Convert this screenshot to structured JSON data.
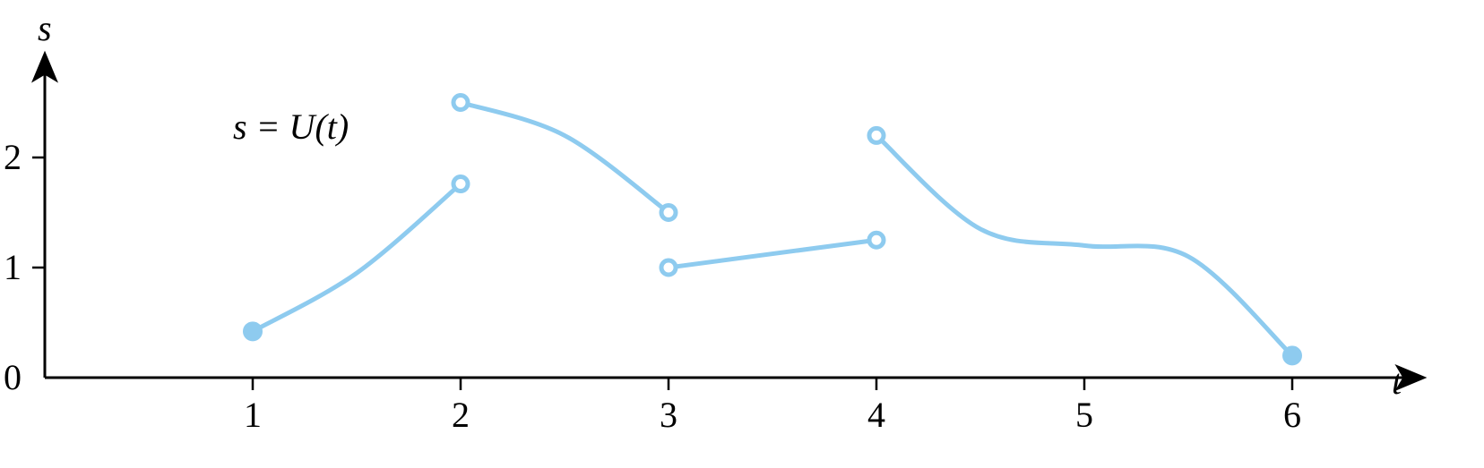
{
  "chart_data": {
    "type": "line",
    "xlabel": "t",
    "ylabel": "s",
    "annotation": "s = U(t)",
    "xlim": [
      0,
      6.45
    ],
    "ylim": [
      0,
      2.8
    ],
    "xticks": [
      1,
      2,
      3,
      4,
      5,
      6
    ],
    "yticks": [
      0,
      1,
      2
    ],
    "grid": false,
    "color": "#8ecbef",
    "series": [
      {
        "points": [
          [
            1,
            0.42
          ],
          [
            1.5,
            0.95
          ],
          [
            2,
            1.76
          ]
        ],
        "start_marker": "filled",
        "end_marker": "open"
      },
      {
        "points": [
          [
            2,
            2.5
          ],
          [
            2.5,
            2.2
          ],
          [
            3,
            1.5
          ]
        ],
        "start_marker": "open",
        "end_marker": "open"
      },
      {
        "points": [
          [
            3,
            1.0
          ],
          [
            4,
            1.25
          ]
        ],
        "start_marker": "open",
        "end_marker": "open"
      },
      {
        "points": [
          [
            4,
            2.2
          ],
          [
            4.5,
            1.35
          ],
          [
            5,
            1.2
          ],
          [
            5.5,
            1.1
          ],
          [
            6,
            0.2
          ]
        ],
        "start_marker": "open",
        "end_marker": "filled"
      }
    ]
  }
}
